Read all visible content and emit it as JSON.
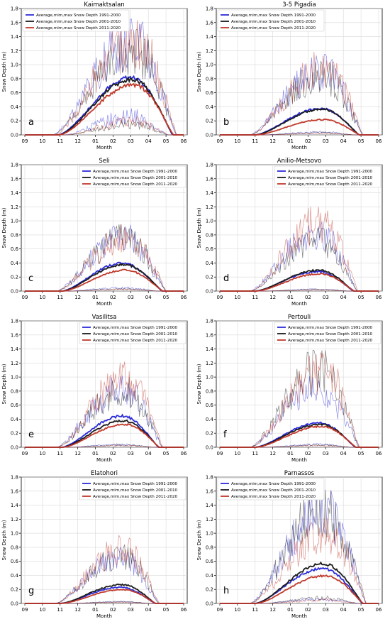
{
  "colors": {
    "1991-2000": "#2b2bd8",
    "2001-2010": "#1a1a1a",
    "2011-2020": "#c0392b"
  },
  "legend_entries": [
    {
      "key": "1991-2000",
      "label": "Average,mim,max Snow Depth 1991-2000"
    },
    {
      "key": "2001-2010",
      "label": "Average,mim,max Snow Depth 2001-2010"
    },
    {
      "key": "2011-2020",
      "label": "Average,mim,max Snow Depth 2011-2020"
    }
  ],
  "chart_data": [
    {
      "type": "line",
      "title": "Kaimaktsalan",
      "panel_label": "a",
      "xlabel": "Month",
      "ylabel": "Snow Depth (m)",
      "x_ticks": [
        "09",
        "10",
        "11",
        "12",
        "01",
        "02",
        "03",
        "04",
        "05",
        "06"
      ],
      "ylim": [
        0,
        1.8
      ],
      "y_ticks": [
        "0.0",
        "0.2",
        "0.4",
        "0.6",
        "0.8",
        "1.0",
        "1.2",
        "1.4",
        "1.6",
        "1.8"
      ],
      "grid": true,
      "legend_position": "top-left",
      "series": [
        {
          "name": "Average,mim,max Snow Depth 1991-2000",
          "key": "1991-2000",
          "avg_peak": 0.82,
          "min_peak": 0.35,
          "max_peak": 1.65
        },
        {
          "name": "Average,mim,max Snow Depth 2001-2010",
          "key": "2001-2010",
          "avg_peak": 0.8,
          "min_peak": 0.2,
          "max_peak": 1.55
        },
        {
          "name": "Average,mim,max Snow Depth 2011-2020",
          "key": "2011-2020",
          "avg_peak": 0.72,
          "min_peak": 0.25,
          "max_peak": 1.65
        }
      ]
    },
    {
      "type": "line",
      "title": "3-5 Pigadia",
      "panel_label": "b",
      "xlabel": "Month",
      "ylabel": "Snow Depth (m)",
      "x_ticks": [
        "09",
        "10",
        "11",
        "12",
        "01",
        "02",
        "03",
        "04",
        "05",
        "06"
      ],
      "ylim": [
        0,
        1.8
      ],
      "y_ticks": [
        "0.0",
        "0.2",
        "0.4",
        "0.6",
        "0.8",
        "1.0",
        "1.2",
        "1.4",
        "1.6",
        "1.8"
      ],
      "grid": true,
      "legend_position": "top-left",
      "series": [
        {
          "name": "Average,mim,max Snow Depth 1991-2000",
          "key": "1991-2000",
          "avg_peak": 0.38,
          "min_peak": 0.05,
          "max_peak": 1.15
        },
        {
          "name": "Average,mim,max Snow Depth 2001-2010",
          "key": "2001-2010",
          "avg_peak": 0.37,
          "min_peak": 0.04,
          "max_peak": 1.05
        },
        {
          "name": "Average,mim,max Snow Depth 2011-2020",
          "key": "2011-2020",
          "avg_peak": 0.22,
          "min_peak": 0.03,
          "max_peak": 1.2
        }
      ]
    },
    {
      "type": "line",
      "title": "Seli",
      "panel_label": "c",
      "xlabel": "Month",
      "ylabel": "Snow Depth (m)",
      "x_ticks": [
        "09",
        "10",
        "11",
        "12",
        "01",
        "02",
        "03",
        "04",
        "05",
        "06"
      ],
      "ylim": [
        0,
        1.8
      ],
      "y_ticks": [
        "0.0",
        "0.2",
        "0.4",
        "0.6",
        "0.8",
        "1.0",
        "1.2",
        "1.4",
        "1.6",
        "1.8"
      ],
      "grid": true,
      "legend_position": "top-right",
      "series": [
        {
          "name": "Average,mim,max Snow Depth 1991-2000",
          "key": "1991-2000",
          "avg_peak": 0.4,
          "min_peak": 0.06,
          "max_peak": 0.95
        },
        {
          "name": "Average,mim,max Snow Depth 2001-2010",
          "key": "2001-2010",
          "avg_peak": 0.38,
          "min_peak": 0.04,
          "max_peak": 0.95
        },
        {
          "name": "Average,mim,max Snow Depth 2011-2020",
          "key": "2011-2020",
          "avg_peak": 0.3,
          "min_peak": 0.03,
          "max_peak": 0.95
        }
      ]
    },
    {
      "type": "line",
      "title": "Anilio-Metsovo",
      "panel_label": "d",
      "xlabel": "Month",
      "ylabel": "Snow Depth (m)",
      "x_ticks": [
        "09",
        "10",
        "11",
        "12",
        "01",
        "02",
        "03",
        "04",
        "05",
        "06"
      ],
      "ylim": [
        0,
        1.8
      ],
      "y_ticks": [
        "0.0",
        "0.2",
        "0.4",
        "0.6",
        "0.8",
        "1.0",
        "1.2",
        "1.4",
        "1.6",
        "1.8"
      ],
      "grid": true,
      "legend_position": "top-right",
      "series": [
        {
          "name": "Average,mim,max Snow Depth 1991-2000",
          "key": "1991-2000",
          "avg_peak": 0.28,
          "min_peak": 0.03,
          "max_peak": 1.05
        },
        {
          "name": "Average,mim,max Snow Depth 2001-2010",
          "key": "2001-2010",
          "avg_peak": 0.3,
          "min_peak": 0.03,
          "max_peak": 0.9
        },
        {
          "name": "Average,mim,max Snow Depth 2011-2020",
          "key": "2011-2020",
          "avg_peak": 0.25,
          "min_peak": 0.02,
          "max_peak": 1.2
        }
      ]
    },
    {
      "type": "line",
      "title": "Vasilitsa",
      "panel_label": "e",
      "xlabel": "Month",
      "ylabel": "Snow Depth (m)",
      "x_ticks": [
        "09",
        "10",
        "11",
        "12",
        "01",
        "02",
        "03",
        "04",
        "05",
        "06"
      ],
      "ylim": [
        0,
        1.8
      ],
      "y_ticks": [
        "0.0",
        "0.2",
        "0.4",
        "0.6",
        "0.8",
        "1.0",
        "1.2",
        "1.4",
        "1.6",
        "1.8"
      ],
      "grid": true,
      "legend_position": "top-right",
      "series": [
        {
          "name": "Average,mim,max Snow Depth 1991-2000",
          "key": "1991-2000",
          "avg_peak": 0.45,
          "min_peak": 0.05,
          "max_peak": 1.05
        },
        {
          "name": "Average,mim,max Snow Depth 2001-2010",
          "key": "2001-2010",
          "avg_peak": 0.38,
          "min_peak": 0.04,
          "max_peak": 1.0
        },
        {
          "name": "Average,mim,max Snow Depth 2011-2020",
          "key": "2011-2020",
          "avg_peak": 0.33,
          "min_peak": 0.03,
          "max_peak": 1.22
        }
      ]
    },
    {
      "type": "line",
      "title": "Pertouli",
      "panel_label": "f",
      "xlabel": "Month",
      "ylabel": "Snow Depth (m)",
      "x_ticks": [
        "09",
        "10",
        "11",
        "12",
        "01",
        "02",
        "03",
        "04",
        "05",
        "06"
      ],
      "ylim": [
        0,
        1.8
      ],
      "y_ticks": [
        "0.0",
        "0.2",
        "0.4",
        "0.6",
        "0.8",
        "1.0",
        "1.2",
        "1.4",
        "1.6",
        "1.8"
      ],
      "grid": true,
      "legend_position": "top-right",
      "series": [
        {
          "name": "Average,mim,max Snow Depth 1991-2000",
          "key": "1991-2000",
          "avg_peak": 0.35,
          "min_peak": 0.05,
          "max_peak": 1.05
        },
        {
          "name": "Average,mim,max Snow Depth 2001-2010",
          "key": "2001-2010",
          "avg_peak": 0.33,
          "min_peak": 0.04,
          "max_peak": 1.38
        },
        {
          "name": "Average,mim,max Snow Depth 2011-2020",
          "key": "2011-2020",
          "avg_peak": 0.3,
          "min_peak": 0.03,
          "max_peak": 1.35
        }
      ]
    },
    {
      "type": "line",
      "title": "Elatohori",
      "panel_label": "g",
      "xlabel": "Month",
      "ylabel": "Snow Depth (m)",
      "x_ticks": [
        "09",
        "10",
        "11",
        "12",
        "01",
        "02",
        "03",
        "04",
        "05",
        "06"
      ],
      "ylim": [
        0,
        1.8
      ],
      "y_ticks": [
        "0.0",
        "0.2",
        "0.4",
        "0.6",
        "0.8",
        "1.0",
        "1.2",
        "1.4",
        "1.6",
        "1.8"
      ],
      "grid": true,
      "legend_position": "top-right",
      "series": [
        {
          "name": "Average,mim,max Snow Depth 1991-2000",
          "key": "1991-2000",
          "avg_peak": 0.23,
          "min_peak": 0.03,
          "max_peak": 0.82
        },
        {
          "name": "Average,mim,max Snow Depth 2001-2010",
          "key": "2001-2010",
          "avg_peak": 0.27,
          "min_peak": 0.03,
          "max_peak": 0.85
        },
        {
          "name": "Average,mim,max Snow Depth 2011-2020",
          "key": "2011-2020",
          "avg_peak": 0.2,
          "min_peak": 0.02,
          "max_peak": 0.97
        }
      ]
    },
    {
      "type": "line",
      "title": "Parnassos",
      "panel_label": "h",
      "xlabel": "Month",
      "ylabel": "Snow Depth (m)",
      "x_ticks": [
        "09",
        "10",
        "11",
        "12",
        "01",
        "02",
        "03",
        "04",
        "05",
        "06"
      ],
      "ylim": [
        0,
        1.8
      ],
      "y_ticks": [
        "0.0",
        "0.2",
        "0.4",
        "0.6",
        "0.8",
        "1.0",
        "1.2",
        "1.4",
        "1.6",
        "1.8"
      ],
      "grid": true,
      "legend_position": "top-left",
      "series": [
        {
          "name": "Average,mim,max Snow Depth 1991-2000",
          "key": "1991-2000",
          "avg_peak": 0.5,
          "min_peak": 0.08,
          "max_peak": 1.62
        },
        {
          "name": "Average,mim,max Snow Depth 2001-2010",
          "key": "2001-2010",
          "avg_peak": 0.57,
          "min_peak": 0.1,
          "max_peak": 1.68
        },
        {
          "name": "Average,mim,max Snow Depth 2011-2020",
          "key": "2011-2020",
          "avg_peak": 0.4,
          "min_peak": 0.06,
          "max_peak": 1.22
        }
      ]
    }
  ]
}
